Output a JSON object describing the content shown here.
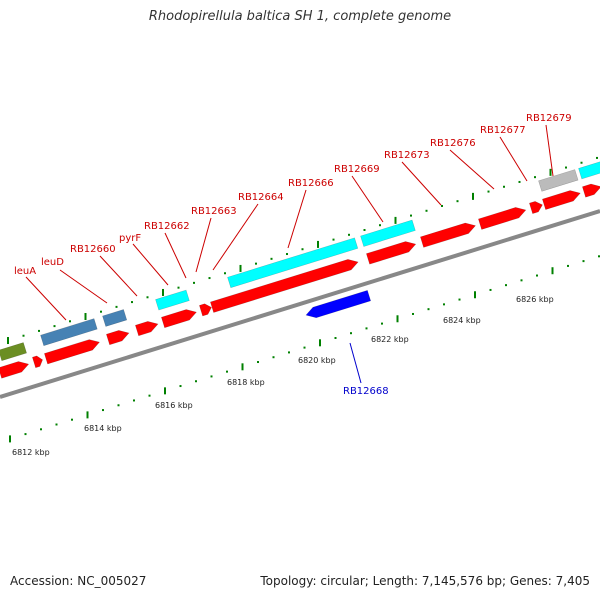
{
  "title": "Rhodopirellula baltica SH 1, complete genome",
  "footer": {
    "accession": "Accession: NC_005027",
    "summary": "Topology: circular; Length: 7,145,576 bp; Genes: 7,405"
  },
  "colors": {
    "forward_gene": "#ff0000",
    "reverse_gene": "#0000ff",
    "cds_block": "#00ffff",
    "operon_block": "#4682b4",
    "other_block": "#6b8e23",
    "unknown_block": "#bbbbbb",
    "ticks": "#008000",
    "backbone": "#888888",
    "forward_label": "#cc0000",
    "reverse_label": "#0000cc"
  },
  "scale_labels": [
    "6812 kbp",
    "6814 kbp",
    "6816 kbp",
    "6818 kbp",
    "6820 kbp",
    "6822 kbp",
    "6824 kbp",
    "6826 kbp"
  ],
  "gene_labels": [
    {
      "name": "leuA",
      "strand": "forward"
    },
    {
      "name": "leuD",
      "strand": "forward"
    },
    {
      "name": "RB12660",
      "strand": "forward"
    },
    {
      "name": "pyrF",
      "strand": "forward"
    },
    {
      "name": "RB12662",
      "strand": "forward"
    },
    {
      "name": "RB12663",
      "strand": "forward"
    },
    {
      "name": "RB12664",
      "strand": "forward"
    },
    {
      "name": "RB12666",
      "strand": "forward"
    },
    {
      "name": "RB12669",
      "strand": "forward"
    },
    {
      "name": "RB12673",
      "strand": "forward"
    },
    {
      "name": "RB12676",
      "strand": "forward"
    },
    {
      "name": "RB12677",
      "strand": "forward"
    },
    {
      "name": "RB12679",
      "strand": "forward"
    },
    {
      "name": "RB12668",
      "strand": "reverse"
    }
  ]
}
